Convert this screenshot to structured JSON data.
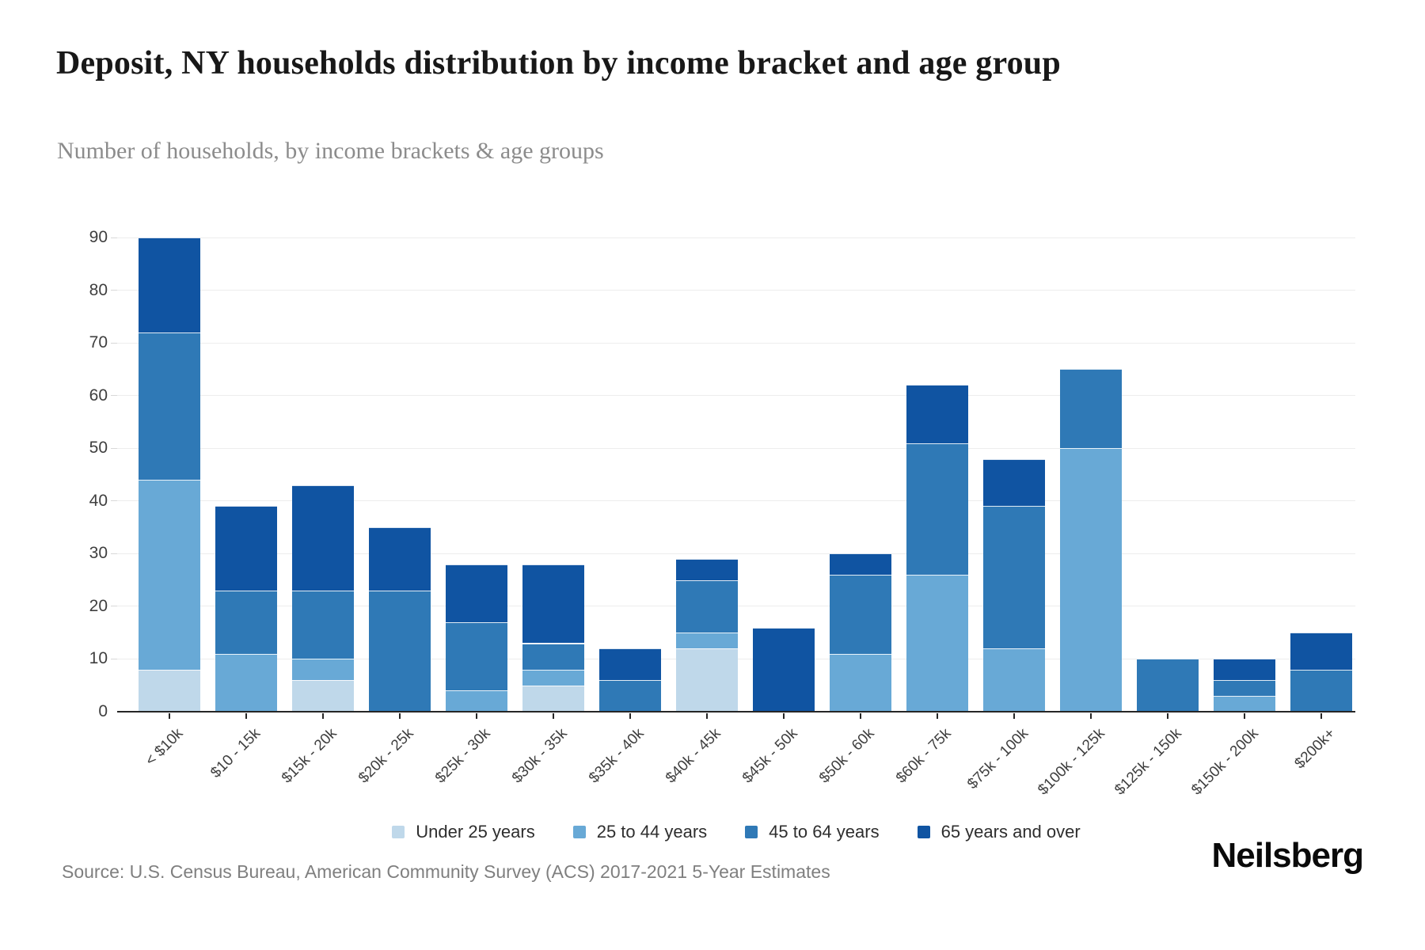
{
  "header": {
    "title": "Deposit, NY households distribution by income bracket and age group",
    "subtitle": "Number of households, by income brackets & age groups"
  },
  "chart_data": {
    "type": "bar",
    "stacked": true,
    "title": "Deposit, NY households distribution by income bracket and age group",
    "subtitle": "Number of households, by income brackets & age groups",
    "xlabel": "",
    "ylabel": "",
    "ylim": [
      0,
      90
    ],
    "ytick_step": 10,
    "ytick_labels": [
      "0",
      "10",
      "20",
      "30",
      "40",
      "50",
      "60",
      "70",
      "80",
      "90"
    ],
    "grid": "horizontal",
    "legend_position": "bottom",
    "categories": [
      "< $10k",
      "$10 - 15k",
      "$15k - 20k",
      "$20k - 25k",
      "$25k - 30k",
      "$30k - 35k",
      "$35k - 40k",
      "$40k - 45k",
      "$45k - 50k",
      "$50k - 60k",
      "$60k - 75k",
      "$75k - 100k",
      "$100k - 125k",
      "$125k - 150k",
      "$150k - 200k",
      "$200k+"
    ],
    "series": [
      {
        "name": "Under 25 years",
        "color": "#bfd8ea",
        "values": [
          8,
          0,
          6,
          0,
          0,
          5,
          0,
          12,
          0,
          0,
          0,
          0,
          0,
          0,
          0,
          0
        ]
      },
      {
        "name": "25 to 44 years",
        "color": "#68a9d6",
        "values": [
          36,
          11,
          4,
          0,
          4,
          3,
          0,
          3,
          0,
          11,
          26,
          12,
          50,
          0,
          3,
          0
        ]
      },
      {
        "name": "45 to 64 years",
        "color": "#2f79b6",
        "values": [
          28,
          12,
          13,
          23,
          13,
          5,
          6,
          10,
          0,
          15,
          25,
          27,
          15,
          10,
          3,
          8
        ]
      },
      {
        "name": "65 years and over",
        "color": "#1054a2",
        "values": [
          18,
          16,
          20,
          12,
          11,
          15,
          6,
          4,
          16,
          4,
          11,
          9,
          0,
          0,
          4,
          7
        ]
      }
    ],
    "totals": [
      90,
      39,
      43,
      35,
      28,
      28,
      12,
      29,
      16,
      30,
      62,
      48,
      65,
      10,
      10,
      15
    ]
  },
  "colors": {
    "axis": "#262626",
    "gridline": "#ededed",
    "title_text": "#181818",
    "subtitle_text": "#8c8c8c",
    "tick_text": "#3f3f3f"
  },
  "footer": {
    "source": "Source: U.S. Census Bureau, American Community Survey (ACS) 2017-2021 5-Year Estimates",
    "brand": "Neilsberg"
  }
}
